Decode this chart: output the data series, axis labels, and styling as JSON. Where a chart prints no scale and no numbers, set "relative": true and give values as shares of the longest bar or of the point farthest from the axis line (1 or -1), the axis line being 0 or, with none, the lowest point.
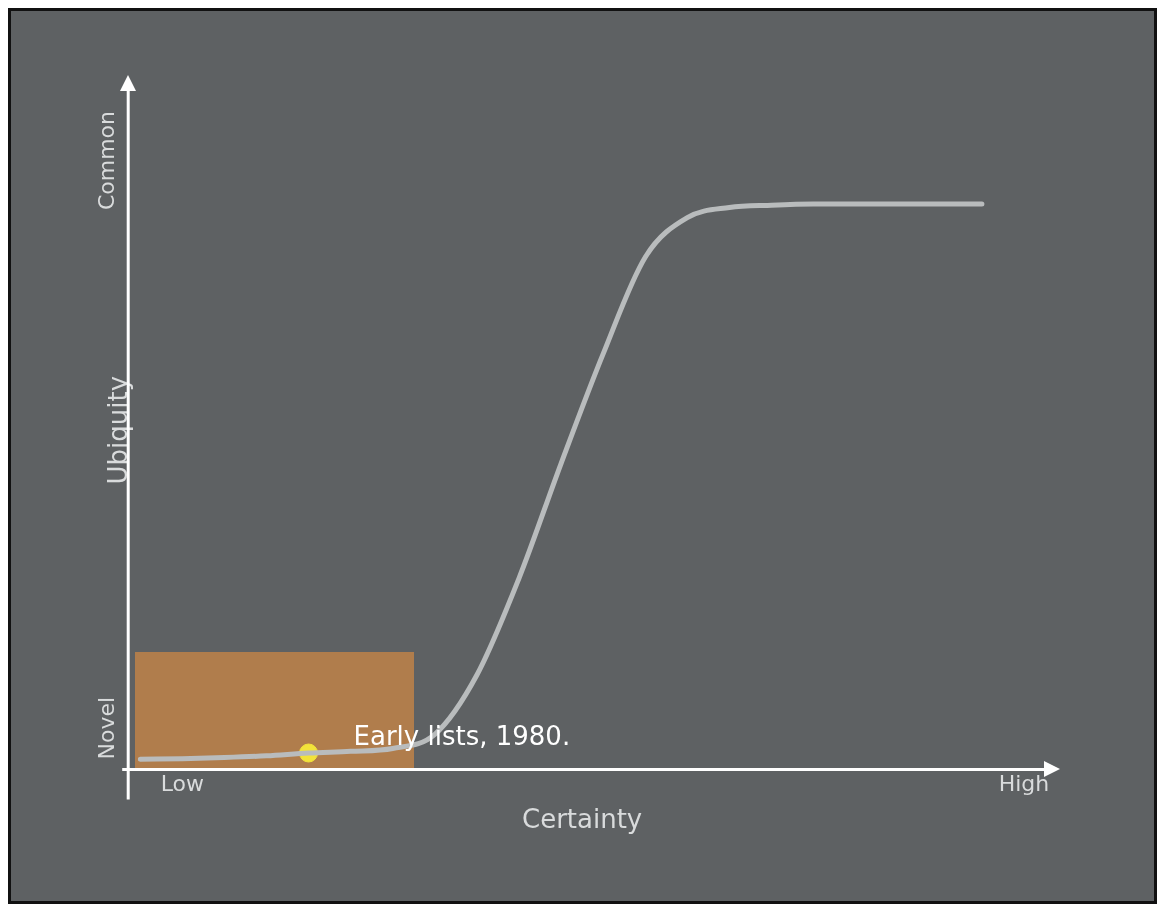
{
  "chart_data": {
    "type": "line",
    "relative": true,
    "xlabel": "Certainty",
    "ylabel": "Ubiquity",
    "categories": [
      null,
      "Low",
      null,
      null,
      null,
      null,
      null,
      null,
      null,
      null,
      null,
      null,
      null,
      null,
      null,
      null,
      null,
      null,
      null,
      null,
      null,
      "High"
    ],
    "grid": false,
    "series": [
      {
        "color": "#b9bcbd",
        "values": [
          0.018,
          0.019,
          0.021,
          0.024,
          0.029,
          0.032,
          0.037,
          0.062,
          0.167,
          0.338,
          0.541,
          0.735,
          0.906,
          0.976,
          0.994,
          0.998,
          1,
          1,
          1,
          1,
          1,
          null
        ]
      },
      {
        "type": "scatter",
        "color": "#f2e33a",
        "values": [
          null,
          null,
          null,
          null,
          0.029,
          null,
          null,
          null,
          null,
          null,
          null,
          null,
          null,
          null,
          null,
          null,
          null,
          null,
          null,
          null,
          null,
          null
        ]
      }
    ],
    "annotations": [
      "Novel",
      "Common",
      "Early lists, 1980."
    ]
  }
}
